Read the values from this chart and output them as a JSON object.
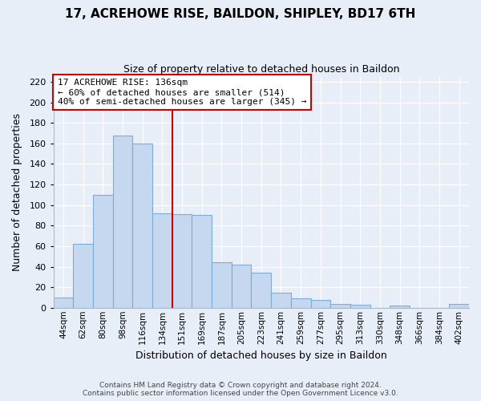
{
  "title": "17, ACREHOWE RISE, BAILDON, SHIPLEY, BD17 6TH",
  "subtitle": "Size of property relative to detached houses in Baildon",
  "xlabel": "Distribution of detached houses by size in Baildon",
  "ylabel": "Number of detached properties",
  "categories": [
    "44sqm",
    "62sqm",
    "80sqm",
    "98sqm",
    "116sqm",
    "134sqm",
    "151sqm",
    "169sqm",
    "187sqm",
    "205sqm",
    "223sqm",
    "241sqm",
    "259sqm",
    "277sqm",
    "295sqm",
    "313sqm",
    "330sqm",
    "348sqm",
    "366sqm",
    "384sqm",
    "402sqm"
  ],
  "values": [
    10,
    62,
    110,
    168,
    160,
    92,
    91,
    90,
    44,
    42,
    34,
    15,
    9,
    8,
    4,
    3,
    0,
    2,
    0,
    0,
    4
  ],
  "bar_color": "#c5d8ef",
  "bar_edge_color": "#7aaed6",
  "reference_line_x": 5.5,
  "reference_line_label": "17 ACREHOWE RISE: 136sqm",
  "annotation_line1": "← 60% of detached houses are smaller (514)",
  "annotation_line2": "40% of semi-detached houses are larger (345) →",
  "annotation_box_color": "#cc0000",
  "ylim": [
    0,
    225
  ],
  "yticks": [
    0,
    20,
    40,
    60,
    80,
    100,
    120,
    140,
    160,
    180,
    200,
    220
  ],
  "footer1": "Contains HM Land Registry data © Crown copyright and database right 2024.",
  "footer2": "Contains public sector information licensed under the Open Government Licence v3.0.",
  "bg_color": "#e8eef8",
  "plot_bg_color": "#e8eef8",
  "grid_color": "#ffffff"
}
